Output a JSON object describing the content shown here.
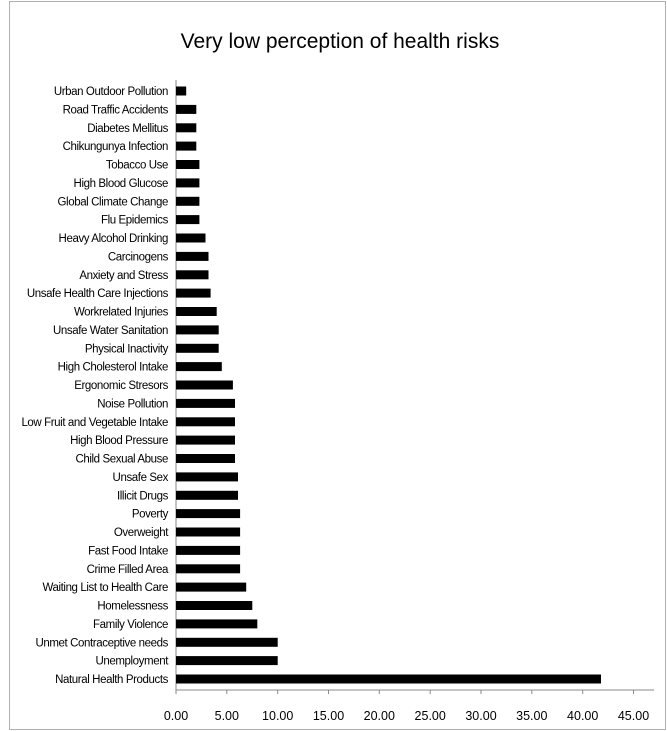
{
  "chart_data": {
    "type": "bar",
    "orientation": "horizontal",
    "title": "Very low perception of health risks",
    "xlabel": "",
    "ylabel": "",
    "xlim": [
      0,
      45
    ],
    "xticks": [
      "0.00",
      "5.00",
      "10.00",
      "15.00",
      "20.00",
      "25.00",
      "30.00",
      "35.00",
      "40.00",
      "45.00"
    ],
    "grid": false,
    "legend": "none",
    "bar_color": "#000000",
    "categories": [
      "Urban Outdoor Pollution",
      "Road Traffic Accidents",
      "Diabetes Mellitus",
      "Chikungunya Infection",
      "Tobacco Use",
      "High Blood Glucose",
      "Global Climate Change",
      "Flu Epidemics",
      "Heavy Alcohol Drinking",
      "Carcinogens",
      "Anxiety and Stress",
      "Unsafe Health Care Injections",
      "Workrelated Injuries",
      "Unsafe Water Sanitation",
      "Physical Inactivity",
      "High Cholesterol Intake",
      "Ergonomic Stresors",
      "Noise Pollution",
      "Low Fruit and Vegetable Intake",
      "High Blood Pressure",
      "Child Sexual Abuse",
      "Unsafe Sex",
      "Illicit Drugs",
      "Poverty",
      "Overweight",
      "Fast Food Intake",
      "Crime Filled Area",
      "Waiting List to Health Care",
      "Homelessness",
      "Family Violence",
      "Unmet Contraceptive needs",
      "Unemployment",
      "Natural Health Products"
    ],
    "values": [
      1.0,
      2.0,
      2.0,
      2.0,
      2.3,
      2.3,
      2.3,
      2.3,
      2.9,
      3.2,
      3.2,
      3.4,
      4.0,
      4.2,
      4.2,
      4.5,
      5.6,
      5.8,
      5.8,
      5.8,
      5.8,
      6.1,
      6.1,
      6.3,
      6.3,
      6.3,
      6.3,
      6.9,
      7.5,
      8.0,
      10.0,
      10.0,
      41.8
    ]
  }
}
